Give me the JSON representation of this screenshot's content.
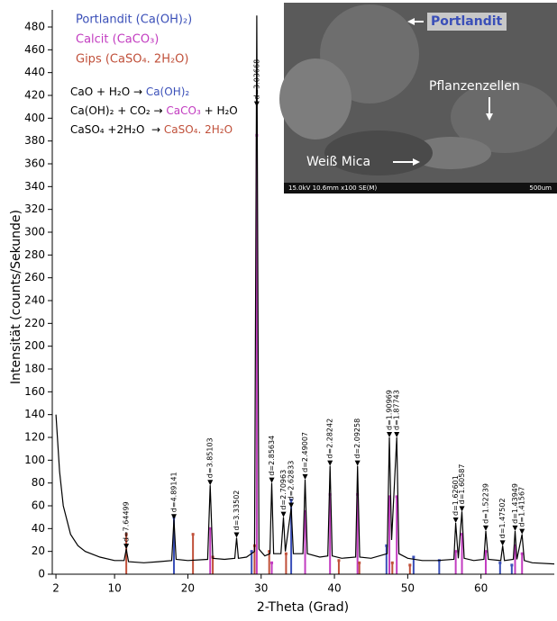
{
  "chart_data": {
    "type": "line",
    "xlabel": "2-Theta (Grad)",
    "ylabel": "Intensität (counts/Sekunde)",
    "xlim": [
      1.5,
      70
    ],
    "ylim": [
      0,
      495
    ],
    "xticks": [
      2,
      10,
      20,
      30,
      40,
      50,
      60
    ],
    "yticks": [
      0,
      20,
      40,
      60,
      80,
      100,
      120,
      140,
      160,
      180,
      200,
      220,
      240,
      260,
      280,
      300,
      320,
      340,
      360,
      380,
      400,
      420,
      440,
      460,
      480
    ],
    "pattern": {
      "color": "#000000",
      "x": [
        2,
        2.5,
        3,
        4,
        5,
        6,
        8,
        10,
        11.3,
        11.6,
        11.9,
        14,
        16,
        17.8,
        18.1,
        18.4,
        20,
        22.7,
        23.05,
        23.4,
        25,
        26.4,
        26.65,
        26.9,
        28,
        29.1,
        29.4,
        29.7,
        30.5,
        31.2,
        31.45,
        31.7,
        32.7,
        33.05,
        33.3,
        34.1,
        34.4,
        35.7,
        36.0,
        36.3,
        38,
        39.1,
        39.4,
        39.7,
        41,
        42.9,
        43.15,
        43.45,
        45,
        47.2,
        47.5,
        47.8,
        48.5,
        48.8,
        50,
        52,
        54,
        56.3,
        56.55,
        56.9,
        57.4,
        57.7,
        59,
        60.4,
        60.65,
        61,
        62.7,
        62.95,
        63.2,
        64.4,
        64.65,
        64.9,
        65.6,
        65.9,
        67,
        70
      ],
      "values": [
        140,
        90,
        60,
        35,
        25,
        20,
        15,
        12,
        12,
        22,
        11,
        10,
        11,
        12,
        48,
        13,
        12,
        13,
        78,
        14,
        13,
        14,
        32,
        14,
        15,
        20,
        490,
        22,
        16,
        18,
        80,
        18,
        18,
        50,
        20,
        58,
        18,
        18,
        83,
        18,
        15,
        16,
        95,
        16,
        14,
        15,
        95,
        15,
        14,
        18,
        120,
        30,
        120,
        18,
        14,
        12,
        12,
        13,
        45,
        14,
        55,
        14,
        12,
        13,
        38,
        13,
        12,
        25,
        12,
        13,
        38,
        13,
        35,
        12,
        10,
        9
      ]
    },
    "series": [
      {
        "name": "Portlandit (Ca(OH)₂)",
        "color": "#3a4fb8",
        "x": [
          18.1,
          28.7,
          34.1,
          47.1,
          50.8,
          54.3,
          62.6,
          64.2
        ],
        "values": [
          50,
          20,
          65,
          25,
          15,
          12,
          10,
          8
        ]
      },
      {
        "name": "Calcit (CaCO₃)",
        "color": "#c23cc0",
        "x": [
          23.05,
          29.4,
          31.45,
          36.0,
          39.4,
          43.15,
          47.5,
          48.5,
          56.55,
          57.4,
          60.65,
          64.65,
          65.6
        ],
        "values": [
          40,
          385,
          10,
          55,
          70,
          70,
          68,
          68,
          20,
          35,
          20,
          25,
          18
        ]
      },
      {
        "name": "Gips (CaSO₄. 2H₂O)",
        "color": "#c0503a",
        "x": [
          11.6,
          20.7,
          23.4,
          29.1,
          31.1,
          33.4,
          40.6,
          43.4,
          47.9,
          50.3
        ],
        "values": [
          35,
          35,
          15,
          25,
          20,
          18,
          12,
          10,
          10,
          8
        ]
      }
    ],
    "peaks": [
      {
        "x": 11.6,
        "y": 22,
        "label": "d=7.64499"
      },
      {
        "x": 18.1,
        "y": 48,
        "label": "d=4.89141"
      },
      {
        "x": 23.05,
        "y": 78,
        "label": "d=3.85103"
      },
      {
        "x": 26.65,
        "y": 32,
        "label": "d=3.33502"
      },
      {
        "x": 29.4,
        "y": 410,
        "label": "d=3.03668"
      },
      {
        "x": 31.45,
        "y": 80,
        "label": "d=2.85634"
      },
      {
        "x": 33.05,
        "y": 50,
        "label": "d=2.70963"
      },
      {
        "x": 34.1,
        "y": 58,
        "label": "d=2.62833"
      },
      {
        "x": 36.0,
        "y": 83,
        "label": "d=2.49007"
      },
      {
        "x": 39.4,
        "y": 95,
        "label": "d=2.28242"
      },
      {
        "x": 43.15,
        "y": 95,
        "label": "d=2.09258"
      },
      {
        "x": 47.5,
        "y": 120,
        "label": "d=1.90969"
      },
      {
        "x": 48.5,
        "y": 120,
        "label": "d=1.87743"
      },
      {
        "x": 56.55,
        "y": 45,
        "label": "d=1.62601"
      },
      {
        "x": 57.4,
        "y": 55,
        "label": "d=1.60587"
      },
      {
        "x": 60.65,
        "y": 38,
        "label": "d=1.52239"
      },
      {
        "x": 62.95,
        "y": 25,
        "label": "d=1.47502"
      },
      {
        "x": 64.65,
        "y": 38,
        "label": "d=1.43949"
      },
      {
        "x": 65.6,
        "y": 35,
        "label": "d=1.41567"
      }
    ],
    "reactions": [
      [
        {
          "text": "CaO + H₂O → ",
          "color": "#000000"
        },
        {
          "text": "Ca(OH)₂",
          "color": "#3a4fb8"
        }
      ],
      [
        {
          "text": "Ca(OH)₂ + CO₂ → ",
          "color": "#000000"
        },
        {
          "text": "CaCO₃",
          "color": "#c23cc0"
        },
        {
          "text": " + H₂O",
          "color": "#000000"
        }
      ],
      [
        {
          "text": "CaSO₄ +2H₂O  → ",
          "color": "#000000"
        },
        {
          "text": "CaSO₄. 2H₂O",
          "color": "#c0503a"
        }
      ]
    ]
  },
  "inset": {
    "portlandit": "Portlandit",
    "cells": "Pflanzenzellen",
    "mica": "Weiß Mica",
    "info": "15.0kV 10.6mm x100 SE(M)",
    "scale": "500um"
  }
}
